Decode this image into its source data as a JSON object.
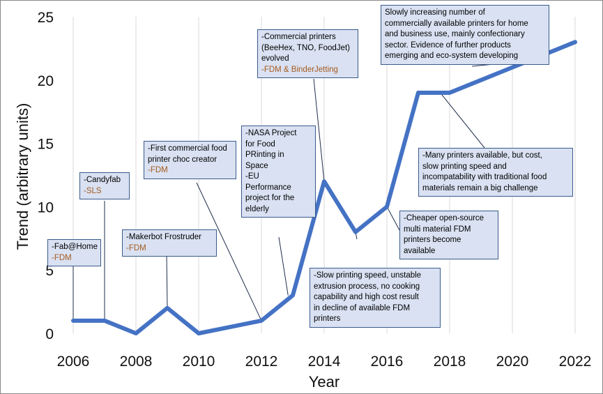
{
  "chart_data": {
    "type": "line",
    "xlabel": "Year",
    "ylabel": "Trend  (arbitrary units)",
    "xlim": [
      2006,
      2022
    ],
    "ylim": [
      0,
      25
    ],
    "x_ticks": [
      "2006",
      "2008",
      "2010",
      "2012",
      "2014",
      "2016",
      "2018",
      "2020",
      "2022"
    ],
    "y_ticks": [
      "0",
      "5",
      "10",
      "15",
      "20",
      "25"
    ],
    "grid": "vertical",
    "line_color": "#4472c4",
    "annotation_color": "#a65a1e",
    "x": [
      2006,
      2007,
      2008,
      2009,
      2010,
      2011,
      2012,
      2013,
      2014,
      2015,
      2016,
      2017,
      2018,
      2019,
      2020,
      2021,
      2022
    ],
    "y": [
      1,
      1,
      0,
      2,
      0,
      0.5,
      1,
      3,
      12,
      8,
      10,
      19,
      19,
      20,
      21,
      22,
      23
    ],
    "annotations": [
      {
        "id": "fab",
        "lines": [
          "-Fab@Home"
        ],
        "accent": "-FDM"
      },
      {
        "id": "candy",
        "lines": [
          "-Candyfab"
        ],
        "accent": "-SLS"
      },
      {
        "id": "makerbot",
        "lines": [
          "-Makerbot Frostruder"
        ],
        "accent": "-FDM"
      },
      {
        "id": "choc",
        "lines": [
          "-First commercial food",
          "printer choc creator"
        ],
        "accent": "-FDM"
      },
      {
        "id": "nasa",
        "lines": [
          "-NASA Project",
          "for Food",
          "PRinting in",
          "Space",
          "-EU",
          "Performance",
          "project for the",
          "elderly"
        ],
        "accent": ""
      },
      {
        "id": "commercial",
        "lines": [
          "-Commercial printers",
          "(BeeHex, TNO, FoodJet)",
          "evolved"
        ],
        "accent": "-FDM & BinderJetting"
      },
      {
        "id": "slowly",
        "lines": [
          "Slowly increasing number of",
          "commercially available printers for home",
          "and business use, mainly confectionary",
          "sector. Evidence of further products",
          "emerging and eco-system developing"
        ],
        "accent": ""
      },
      {
        "id": "many",
        "lines": [
          "-Many printers available, but cost,",
          "slow printing speed and",
          "incompatability with traditional food",
          "materials remain a big challenge"
        ],
        "accent": ""
      },
      {
        "id": "cheaper",
        "lines": [
          "-Cheaper open-source",
          "multi material FDM",
          "printers become",
          "available"
        ],
        "accent": ""
      },
      {
        "id": "slow",
        "lines": [
          "-Slow printing speed, unstable",
          "extrusion process, no cooking",
          "capability and high cost result",
          "in decline of available FDM",
          "printers"
        ],
        "accent": ""
      }
    ]
  }
}
